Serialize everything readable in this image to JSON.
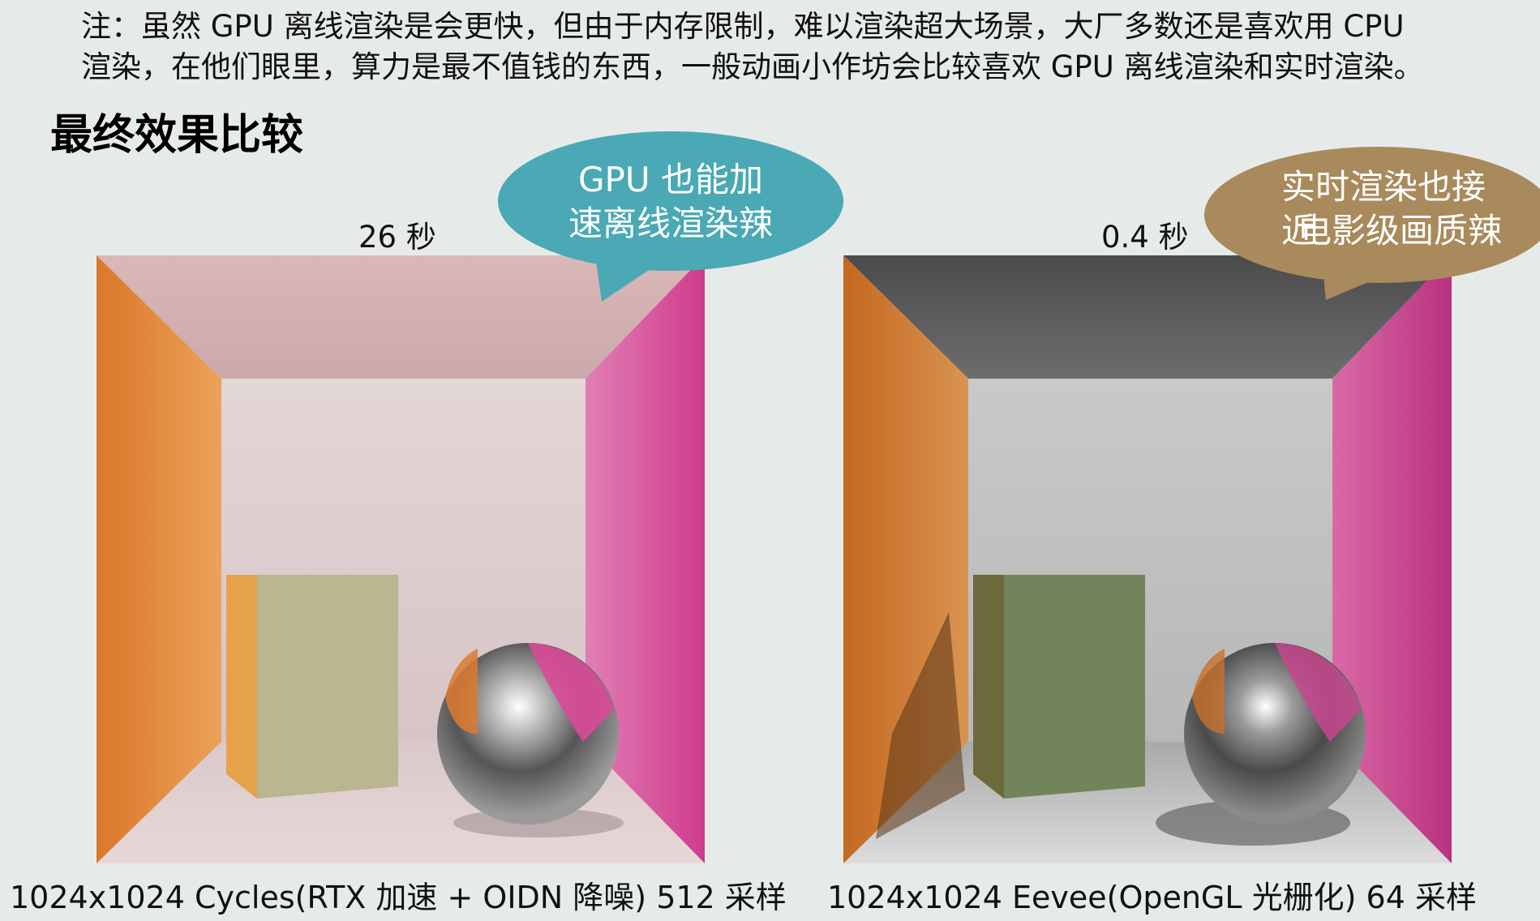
{
  "note": {
    "line1": "注：虽然 GPU 离线渲染是会更快，但由于内存限制，难以渲染超大场景，大厂多数还是喜欢用 CPU",
    "line2": "渲染，在他们眼里，算力是最不值钱的东西，一般动画小作坊会比较喜欢 GPU 离线渲染和实时渲染。"
  },
  "heading": "最终效果比较",
  "left": {
    "time": "26 秒",
    "bubble_line1": "GPU 也能加",
    "bubble_line2": "速离线渲染辣",
    "bubble_color": "#4aa9b4",
    "caption": "1024x1024 Cycles(RTX 加速 + OIDN 降噪) 512 采样"
  },
  "right": {
    "time": "0.4 秒",
    "bubble_line1": "实时渲染也接近",
    "bubble_line2": "电影级画质辣",
    "bubble_color": "#a98a5c",
    "caption": "1024x1024 Eevee(OpenGL 光栅化) 64 采样"
  }
}
